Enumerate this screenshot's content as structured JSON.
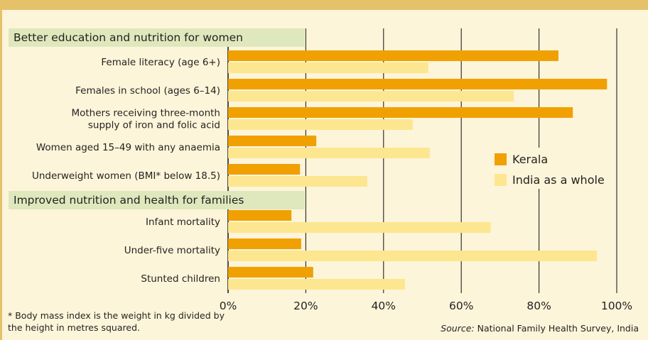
{
  "colors": {
    "kerala": "#f0a000",
    "india": "#fde690",
    "header_bg": "#dfe8bd",
    "background": "#fdf5d9",
    "frame": "#e5c16a",
    "gridline": "#231f20"
  },
  "legend": {
    "kerala": "Kerala",
    "india": "India as a whole"
  },
  "footnote": "* Body mass index is the weight in kg divided by the height in metres squared.",
  "source": {
    "label": "Source:",
    "text": "National Family Health Survey, India"
  },
  "chart_data": {
    "type": "bar",
    "orientation": "horizontal",
    "xlim": [
      0,
      100
    ],
    "x_ticks": [
      "0%",
      "20%",
      "40%",
      "60%",
      "80%",
      "100%"
    ],
    "grid": true,
    "legend_position": "right",
    "series": [
      {
        "name": "Kerala",
        "color": "#f0a000"
      },
      {
        "name": "India as a whole",
        "color": "#fde690"
      }
    ],
    "groups": [
      {
        "title": "Better education and nutrition for women",
        "categories": [
          {
            "label": [
              "Female literacy (age 6+)"
            ],
            "values": [
              85,
              51.5
            ]
          },
          {
            "label": [
              "Females in school (ages 6–14)"
            ],
            "values": [
              97.5,
              73.5
            ]
          },
          {
            "label": [
              "Mothers receiving three-month",
              "supply of iron and folic acid"
            ],
            "values": [
              88.7,
              47.5
            ]
          },
          {
            "label": [
              "Women aged 15–49 with any anaemia"
            ],
            "values": [
              22.7,
              51.9
            ]
          },
          {
            "label": [
              "Underweight women (BMI* below 18.5)"
            ],
            "values": [
              18.5,
              35.8
            ]
          }
        ]
      },
      {
        "title": "Improved nutrition and health for families",
        "categories": [
          {
            "label": [
              "Infant mortality"
            ],
            "values": [
              16.3,
              67.6
            ]
          },
          {
            "label": [
              "Under-five mortality"
            ],
            "values": [
              18.8,
              94.9
            ]
          },
          {
            "label": [
              "Stunted children"
            ],
            "values": [
              21.9,
              45.5
            ]
          }
        ]
      }
    ]
  }
}
